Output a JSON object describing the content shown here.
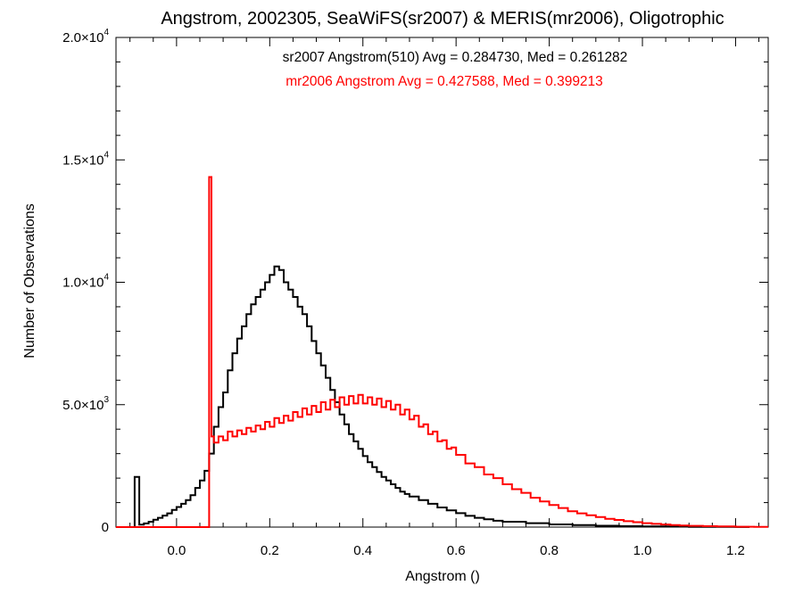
{
  "chart_data": {
    "type": "histogram",
    "title": "Angstrom, 2002305, SeaWiFS(sr2007) & MERIS(mr2006), Oligotrophic",
    "xlabel": "Angstrom ()",
    "ylabel": "Number of Observations",
    "xlim": [
      -0.13,
      1.27
    ],
    "ylim": [
      0,
      20000
    ],
    "x_ticks": [
      {
        "value": 0.0,
        "label": "0.0"
      },
      {
        "value": 0.2,
        "label": "0.2"
      },
      {
        "value": 0.4,
        "label": "0.4"
      },
      {
        "value": 0.6,
        "label": "0.6"
      },
      {
        "value": 0.8,
        "label": "0.8"
      },
      {
        "value": 1.0,
        "label": "1.0"
      },
      {
        "value": 1.2,
        "label": "1.2"
      }
    ],
    "y_ticks": [
      {
        "value": 0,
        "mantissa": "0",
        "exp": ""
      },
      {
        "value": 5000,
        "mantissa": "5.0×10",
        "exp": "3"
      },
      {
        "value": 10000,
        "mantissa": "1.0×10",
        "exp": "4"
      },
      {
        "value": 15000,
        "mantissa": "1.5×10",
        "exp": "4"
      },
      {
        "value": 20000,
        "mantissa": "2.0×10",
        "exp": "4"
      }
    ],
    "annotations": [
      {
        "text": "sr2007 Angstrom(510) Avg = 0.284730, Med = 0.261282",
        "color": "#000000"
      },
      {
        "text": "mr2006 Angstrom Avg = 0.427588, Med = 0.399213",
        "color": "#ff0000"
      }
    ],
    "bin_width": 0.01,
    "series": [
      {
        "name": "sr2007",
        "color": "#000000",
        "x": [
          -0.09,
          -0.08,
          -0.07,
          -0.06,
          -0.05,
          -0.04,
          -0.03,
          -0.02,
          -0.01,
          0.0,
          0.01,
          0.02,
          0.03,
          0.04,
          0.05,
          0.06,
          0.07,
          0.08,
          0.09,
          0.1,
          0.11,
          0.12,
          0.13,
          0.14,
          0.15,
          0.16,
          0.17,
          0.18,
          0.19,
          0.2,
          0.21,
          0.22,
          0.23,
          0.24,
          0.25,
          0.26,
          0.27,
          0.28,
          0.29,
          0.3,
          0.31,
          0.32,
          0.33,
          0.34,
          0.35,
          0.36,
          0.37,
          0.38,
          0.39,
          0.4,
          0.41,
          0.42,
          0.43,
          0.44,
          0.45,
          0.46,
          0.47,
          0.48,
          0.49,
          0.5,
          0.52,
          0.54,
          0.56,
          0.58,
          0.6,
          0.62,
          0.64,
          0.66,
          0.68,
          0.7,
          0.75,
          0.8,
          0.85,
          0.9,
          0.95,
          1.0,
          1.1,
          1.2
        ],
        "values": [
          2050,
          100,
          150,
          220,
          300,
          380,
          470,
          560,
          700,
          820,
          950,
          1100,
          1300,
          1600,
          1900,
          2300,
          3000,
          4100,
          4900,
          5500,
          6400,
          7100,
          7700,
          8200,
          8700,
          9100,
          9400,
          9700,
          10000,
          10300,
          10650,
          10500,
          10000,
          9700,
          9400,
          9000,
          8700,
          8200,
          7600,
          7100,
          6600,
          6100,
          5600,
          5100,
          4600,
          4200,
          3800,
          3500,
          3200,
          2900,
          2650,
          2450,
          2250,
          2050,
          1900,
          1750,
          1600,
          1450,
          1350,
          1250,
          1100,
          950,
          800,
          680,
          570,
          460,
          380,
          320,
          260,
          220,
          160,
          110,
          80,
          55,
          35,
          25,
          10,
          5
        ]
      },
      {
        "name": "mr2006",
        "color": "#ff0000",
        "x": [
          -0.13,
          0.07,
          0.075,
          0.08,
          0.09,
          0.1,
          0.11,
          0.12,
          0.13,
          0.14,
          0.15,
          0.16,
          0.17,
          0.18,
          0.19,
          0.2,
          0.21,
          0.22,
          0.23,
          0.24,
          0.25,
          0.26,
          0.27,
          0.28,
          0.29,
          0.3,
          0.31,
          0.32,
          0.33,
          0.34,
          0.35,
          0.36,
          0.37,
          0.38,
          0.39,
          0.4,
          0.41,
          0.42,
          0.43,
          0.44,
          0.45,
          0.46,
          0.47,
          0.48,
          0.49,
          0.5,
          0.51,
          0.52,
          0.53,
          0.54,
          0.55,
          0.56,
          0.57,
          0.58,
          0.59,
          0.6,
          0.62,
          0.64,
          0.66,
          0.68,
          0.7,
          0.72,
          0.74,
          0.76,
          0.78,
          0.8,
          0.82,
          0.84,
          0.86,
          0.88,
          0.9,
          0.92,
          0.94,
          0.96,
          0.98,
          1.0,
          1.02,
          1.04,
          1.06,
          1.08,
          1.1,
          1.13,
          1.16,
          1.2,
          1.24
        ],
        "values": [
          0,
          14300,
          3700,
          3450,
          3700,
          3550,
          3900,
          3700,
          3950,
          3800,
          4050,
          3900,
          4150,
          4000,
          4300,
          4100,
          4450,
          4250,
          4550,
          4350,
          4700,
          4500,
          4850,
          4600,
          4950,
          4700,
          5100,
          4800,
          5200,
          4900,
          5300,
          5000,
          5350,
          5050,
          5400,
          5050,
          5300,
          5000,
          5250,
          4900,
          5150,
          4800,
          5000,
          4600,
          4800,
          4400,
          4550,
          4100,
          4200,
          3800,
          3900,
          3500,
          3550,
          3200,
          3250,
          2950,
          2600,
          2450,
          2150,
          2000,
          1750,
          1550,
          1400,
          1200,
          1050,
          900,
          780,
          650,
          560,
          480,
          410,
          340,
          290,
          240,
          200,
          160,
          130,
          105,
          85,
          65,
          50,
          35,
          25,
          15,
          8
        ]
      }
    ]
  }
}
